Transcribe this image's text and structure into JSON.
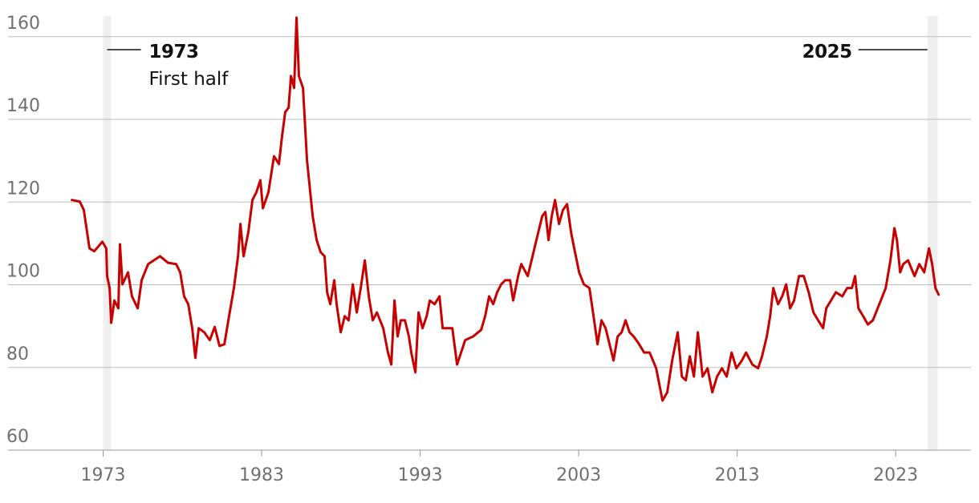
{
  "chart_data": {
    "type": "line",
    "color": "#c70000",
    "x": [
      1971.03,
      1971.53,
      1971.78,
      1972.14,
      1972.44,
      1972.95,
      1973.2,
      1973.25,
      1973.41,
      1973.51,
      1973.71,
      1973.96,
      1974.06,
      1974.22,
      1974.57,
      1974.82,
      1975.18,
      1975.43,
      1975.84,
      1976.19,
      1976.59,
      1977.1,
      1977.61,
      1977.86,
      1978.11,
      1978.37,
      1978.62,
      1978.82,
      1979.03,
      1979.38,
      1979.73,
      1980.04,
      1980.34,
      1980.65,
      1980.9,
      1981.25,
      1981.51,
      1981.66,
      1981.86,
      1982.16,
      1982.42,
      1982.67,
      1982.92,
      1983.08,
      1983.43,
      1983.78,
      1984.09,
      1984.29,
      1984.49,
      1984.7,
      1984.85,
      1985.05,
      1985.2,
      1985.35,
      1985.61,
      1985.86,
      1986.22,
      1986.47,
      1986.72,
      1986.97,
      1987.13,
      1987.33,
      1987.58,
      1987.73,
      1987.99,
      1988.24,
      1988.49,
      1988.75,
      1989.0,
      1989.25,
      1989.51,
      1989.76,
      1990.01,
      1990.27,
      1990.67,
      1990.97,
      1991.18,
      1991.38,
      1991.58,
      1991.78,
      1992.04,
      1992.29,
      1992.44,
      1992.7,
      1992.9,
      1993.15,
      1993.41,
      1993.61,
      1993.91,
      1994.22,
      1994.42,
      1994.72,
      1995.03,
      1995.33,
      1995.58,
      1995.84,
      1996.34,
      1996.85,
      1997.1,
      1997.35,
      1997.61,
      1997.86,
      1998.11,
      1998.37,
      1998.67,
      1998.87,
      1999.18,
      1999.38,
      1999.79,
      2000.09,
      2000.39,
      2000.7,
      2000.9,
      2001.1,
      2001.3,
      2001.51,
      2001.76,
      2002.01,
      2002.27,
      2002.52,
      2002.72,
      2003.03,
      2003.33,
      2003.68,
      2003.94,
      2004.19,
      2004.44,
      2004.7,
      2004.95,
      2005.2,
      2005.46,
      2005.71,
      2005.96,
      2006.21,
      2006.47,
      2006.82,
      2007.13,
      2007.48,
      2007.89,
      2008.09,
      2008.29,
      2008.59,
      2008.9,
      2009.25,
      2009.51,
      2009.76,
      2010.01,
      2010.27,
      2010.52,
      2010.82,
      2011.13,
      2011.43,
      2011.73,
      2012.04,
      2012.34,
      2012.65,
      2012.95,
      2013.3,
      2013.56,
      2013.96,
      2014.32,
      2014.57,
      2014.87,
      2015.08,
      2015.28,
      2015.58,
      2015.84,
      2016.09,
      2016.34,
      2016.59,
      2016.9,
      2017.2,
      2017.51,
      2017.81,
      2018.11,
      2018.42,
      2018.62,
      2018.92,
      2019.23,
      2019.63,
      2019.94,
      2020.24,
      2020.44,
      2020.65,
      2020.95,
      2021.25,
      2021.56,
      2021.76,
      2022.06,
      2022.37,
      2022.67,
      2022.92,
      2023.08,
      2023.28,
      2023.48,
      2023.78,
      2024.19,
      2024.49,
      2024.8,
      2025.1,
      2025.3,
      2025.51,
      2025.71
    ],
    "values": [
      120.5,
      120.1,
      118.1,
      108.8,
      108.1,
      110.4,
      108.8,
      102.1,
      99.2,
      90.8,
      96.2,
      94.3,
      109.8,
      100.1,
      103.0,
      97.2,
      94.3,
      101.1,
      105.0,
      105.9,
      106.9,
      105.3,
      105.0,
      103.0,
      97.2,
      95.3,
      89.5,
      82.3,
      89.5,
      88.5,
      86.6,
      89.8,
      85.2,
      85.6,
      91.4,
      99.2,
      106.9,
      114.7,
      106.9,
      112.7,
      120.5,
      122.4,
      125.3,
      118.5,
      122.4,
      131.1,
      129.2,
      136.0,
      141.8,
      142.8,
      150.5,
      147.6,
      164.6,
      150.5,
      147.6,
      130.2,
      116.6,
      110.8,
      107.9,
      106.9,
      98.2,
      95.3,
      101.1,
      95.3,
      88.5,
      92.4,
      91.4,
      100.1,
      93.3,
      99.2,
      105.9,
      97.2,
      91.4,
      93.3,
      89.5,
      83.6,
      80.7,
      96.2,
      87.5,
      91.4,
      91.4,
      87.5,
      83.6,
      78.8,
      93.3,
      89.5,
      92.4,
      96.2,
      95.3,
      97.2,
      89.5,
      89.5,
      89.5,
      80.7,
      83.6,
      86.6,
      87.5,
      89.1,
      92.4,
      97.2,
      95.3,
      98.2,
      100.1,
      101.1,
      101.1,
      96.2,
      102.1,
      105.0,
      102.1,
      106.9,
      111.7,
      116.6,
      117.6,
      110.8,
      116.6,
      120.5,
      114.7,
      118.1,
      119.5,
      112.7,
      108.8,
      103.0,
      100.1,
      99.2,
      92.4,
      85.6,
      91.4,
      89.5,
      85.6,
      81.7,
      87.5,
      88.5,
      91.4,
      88.5,
      87.5,
      85.6,
      83.6,
      83.6,
      79.8,
      75.9,
      72.0,
      74.0,
      81.7,
      88.5,
      77.8,
      76.9,
      82.7,
      77.8,
      88.5,
      77.8,
      79.8,
      74.0,
      77.8,
      79.8,
      77.8,
      83.6,
      79.8,
      81.7,
      83.6,
      80.7,
      79.8,
      82.7,
      87.5,
      92.4,
      99.2,
      95.3,
      97.2,
      100.1,
      94.3,
      96.2,
      102.1,
      102.1,
      98.2,
      93.3,
      91.4,
      89.5,
      94.3,
      96.2,
      98.2,
      97.2,
      99.2,
      99.2,
      102.1,
      94.3,
      92.4,
      90.4,
      91.4,
      93.3,
      96.2,
      99.2,
      105.9,
      113.7,
      110.8,
      103.0,
      105.0,
      105.9,
      102.1,
      105.0,
      103.0,
      108.8,
      105.0,
      99.2,
      97.6
    ],
    "xlim": [
      1967,
      2027.75
    ],
    "xticks": [
      1973,
      1983,
      1993,
      2003,
      2013,
      2023
    ],
    "ylim": [
      60,
      165
    ],
    "yticks": [
      60,
      80,
      100,
      120,
      140,
      160
    ],
    "grid": true,
    "highlights": [
      {
        "label": "1973",
        "note": "First half",
        "start": 1973,
        "end": 1973.5
      },
      {
        "label": "2025",
        "start": 2025,
        "end": 2025.65
      }
    ]
  }
}
